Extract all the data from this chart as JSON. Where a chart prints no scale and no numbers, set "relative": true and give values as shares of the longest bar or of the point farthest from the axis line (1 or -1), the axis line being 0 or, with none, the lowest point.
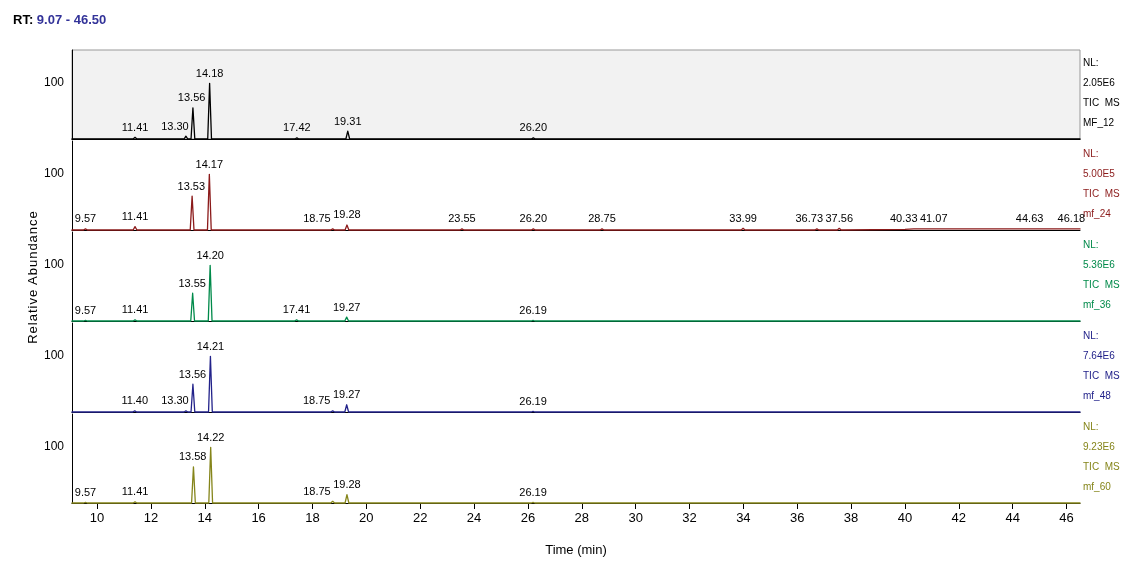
{
  "chart_data": [
    {
      "type": "line",
      "title": "RT: 9.07 - 46.50",
      "relative": true,
      "x": [
        9.07,
        11.34,
        11.41,
        11.48,
        13.23,
        13.3,
        13.37,
        13.49,
        13.56,
        13.63,
        14.11,
        14.18,
        14.25,
        17.35,
        17.42,
        17.49,
        19.24,
        19.31,
        19.38,
        26.13,
        26.2,
        26.27,
        46.5
      ],
      "series": [
        {
          "color": "#000000",
          "values": [
            0,
            0,
            0.03,
            0,
            0,
            0.05,
            0,
            0,
            0.56,
            0,
            0,
            1,
            0,
            0,
            0.02,
            0,
            0,
            0.14,
            0,
            0,
            0.02,
            0,
            0
          ]
        }
      ],
      "xlim": [
        9.07,
        46.5
      ],
      "xticks": [
        10,
        12,
        14,
        16,
        18,
        20,
        22,
        24,
        26,
        28,
        30,
        32,
        34,
        36,
        38,
        40,
        42,
        44,
        46
      ],
      "tick_labels": false,
      "grid": false,
      "annotations": [
        "100",
        {
          "text": "11.41",
          "x": 11.41,
          "y": 0.03
        },
        {
          "text": "13.30",
          "x": 13.3,
          "y": 0.05
        },
        {
          "text": "13.56",
          "x": 13.56,
          "y": 0.56
        },
        {
          "text": "14.18",
          "x": 14.18,
          "y": 1
        },
        {
          "text": "17.42",
          "x": 17.42,
          "y": 0.02
        },
        {
          "text": "19.31",
          "x": 19.31,
          "y": 0.14
        },
        {
          "text": "26.20",
          "x": 26.2,
          "y": 0.02
        },
        "NL:\n2.05E6\nTIC  MS\nMF_12"
      ]
    },
    {
      "type": "line",
      "relative": true,
      "x": [
        9.07,
        9.5,
        9.57,
        9.64,
        11.34,
        11.41,
        11.48,
        13.46,
        13.53,
        13.6,
        14.1,
        14.17,
        14.24,
        18.68,
        18.75,
        18.82,
        19.21,
        19.28,
        19.35,
        23.48,
        23.55,
        23.62,
        26.13,
        26.2,
        26.27,
        28.68,
        28.75,
        28.82,
        33.92,
        33.99,
        34.06,
        36.66,
        36.73,
        36.8,
        37.49,
        37.56,
        37.63,
        40.0,
        40.33,
        41.07,
        44.63,
        46.18,
        46.5
      ],
      "series": [
        {
          "color": "#8b1a1a",
          "values": [
            0,
            0,
            0.02,
            0,
            0,
            0.06,
            0,
            0,
            0.61,
            0,
            0,
            1,
            0,
            0,
            0.02,
            0,
            0,
            0.09,
            0,
            0,
            0.02,
            0,
            0,
            0.02,
            0,
            0,
            0.02,
            0,
            0,
            0.03,
            0,
            0,
            0.02,
            0,
            0,
            0.03,
            0,
            0.01,
            0.02,
            0.02,
            0.02,
            0.02,
            0.02
          ]
        }
      ],
      "xlim": [
        9.07,
        46.5
      ],
      "xticks": [
        10,
        12,
        14,
        16,
        18,
        20,
        22,
        24,
        26,
        28,
        30,
        32,
        34,
        36,
        38,
        40,
        42,
        44,
        46
      ],
      "tick_labels": false,
      "grid": false,
      "annotations": [
        "100",
        {
          "text": "9.57",
          "x": 9.57,
          "y": 0.02
        },
        {
          "text": "11.41",
          "x": 11.41,
          "y": 0.06
        },
        {
          "text": "13.53",
          "x": 13.53,
          "y": 0.61
        },
        {
          "text": "14.17",
          "x": 14.17,
          "y": 1
        },
        {
          "text": "18.75",
          "x": 18.75,
          "y": 0.02
        },
        {
          "text": "19.28",
          "x": 19.28,
          "y": 0.09
        },
        {
          "text": "23.55",
          "x": 23.55,
          "y": 0.02
        },
        {
          "text": "26.20",
          "x": 26.2,
          "y": 0.02
        },
        {
          "text": "28.75",
          "x": 28.75,
          "y": 0.02
        },
        {
          "text": "33.99",
          "x": 33.99,
          "y": 0.03
        },
        {
          "text": "36.73",
          "x": 36.73,
          "y": 0.02
        },
        {
          "text": "37.56",
          "x": 37.56,
          "y": 0.03
        },
        {
          "text": "40.33",
          "x": 40.33,
          "y": 0.02
        },
        {
          "text": "41.07",
          "x": 41.07,
          "y": 0.02
        },
        {
          "text": "44.63",
          "x": 44.63,
          "y": 0.02
        },
        {
          "text": "46.18",
          "x": 46.18,
          "y": 0.02
        },
        "NL:\n5.00E5\nTIC  MS\nmf_24"
      ]
    },
    {
      "type": "line",
      "relative": true,
      "ylabel": "Relative Abundance",
      "x": [
        9.07,
        9.5,
        9.57,
        9.64,
        11.34,
        11.41,
        11.48,
        13.48,
        13.55,
        13.62,
        14.13,
        14.2,
        14.27,
        17.34,
        17.41,
        17.48,
        19.2,
        19.27,
        19.34,
        26.12,
        26.19,
        26.26,
        46.5
      ],
      "series": [
        {
          "color": "#008a4a",
          "values": [
            0,
            0,
            0.01,
            0,
            0,
            0.02,
            0,
            0,
            0.5,
            0,
            0,
            1,
            0,
            0,
            0.02,
            0,
            0,
            0.07,
            0,
            0,
            0.01,
            0,
            0
          ]
        }
      ],
      "xlim": [
        9.07,
        46.5
      ],
      "xticks": [
        10,
        12,
        14,
        16,
        18,
        20,
        22,
        24,
        26,
        28,
        30,
        32,
        34,
        36,
        38,
        40,
        42,
        44,
        46
      ],
      "tick_labels": false,
      "grid": false,
      "annotations": [
        "100",
        {
          "text": "9.57",
          "x": 9.57,
          "y": 0.01
        },
        {
          "text": "11.41",
          "x": 11.41,
          "y": 0.02
        },
        {
          "text": "13.55",
          "x": 13.55,
          "y": 0.5
        },
        {
          "text": "14.20",
          "x": 14.2,
          "y": 1
        },
        {
          "text": "17.41",
          "x": 17.41,
          "y": 0.02
        },
        {
          "text": "19.27",
          "x": 19.27,
          "y": 0.07
        },
        {
          "text": "26.19",
          "x": 26.19,
          "y": 0.01
        },
        "NL:\n5.36E6\nTIC  MS\nmf_36"
      ]
    },
    {
      "type": "line",
      "relative": true,
      "x": [
        9.07,
        11.33,
        11.4,
        11.47,
        13.23,
        13.3,
        13.37,
        13.49,
        13.56,
        13.63,
        14.14,
        14.21,
        14.28,
        18.68,
        18.75,
        18.82,
        19.2,
        19.27,
        19.34,
        26.12,
        26.19,
        26.26,
        46.5
      ],
      "series": [
        {
          "color": "#22228a",
          "values": [
            0,
            0,
            0.02,
            0,
            0,
            0.02,
            0,
            0,
            0.5,
            0,
            0,
            1,
            0,
            0,
            0.02,
            0,
            0,
            0.13,
            0,
            0,
            0.01,
            0,
            0
          ]
        }
      ],
      "xlim": [
        9.07,
        46.5
      ],
      "xticks": [
        10,
        12,
        14,
        16,
        18,
        20,
        22,
        24,
        26,
        28,
        30,
        32,
        34,
        36,
        38,
        40,
        42,
        44,
        46
      ],
      "tick_labels": false,
      "grid": false,
      "annotations": [
        "100",
        {
          "text": "11.40",
          "x": 11.4,
          "y": 0.02
        },
        {
          "text": "13.30",
          "x": 13.3,
          "y": 0.02
        },
        {
          "text": "13.56",
          "x": 13.56,
          "y": 0.5
        },
        {
          "text": "14.21",
          "x": 14.21,
          "y": 1
        },
        {
          "text": "18.75",
          "x": 18.75,
          "y": 0.02
        },
        {
          "text": "19.27",
          "x": 19.27,
          "y": 0.13
        },
        {
          "text": "26.19",
          "x": 26.19,
          "y": 0.01
        },
        "NL:\n7.64E6\nTIC  MS\nmf_48"
      ]
    },
    {
      "type": "line",
      "relative": true,
      "xlabel": "Time (min)",
      "x": [
        9.07,
        9.5,
        9.57,
        9.64,
        11.34,
        11.41,
        11.48,
        13.51,
        13.58,
        13.65,
        14.15,
        14.22,
        14.29,
        18.68,
        18.75,
        18.82,
        19.21,
        19.28,
        19.35,
        26.12,
        26.19,
        26.26,
        46.5
      ],
      "series": [
        {
          "color": "#85851a",
          "values": [
            0,
            0,
            0.01,
            0,
            0,
            0.02,
            0,
            0,
            0.65,
            0,
            0,
            1,
            0,
            0,
            0.03,
            0,
            0,
            0.15,
            0,
            0,
            0.01,
            0,
            0
          ]
        }
      ],
      "xlim": [
        9.07,
        46.5
      ],
      "xticks": [
        10,
        12,
        14,
        16,
        18,
        20,
        22,
        24,
        26,
        28,
        30,
        32,
        34,
        36,
        38,
        40,
        42,
        44,
        46
      ],
      "tick_labels": "x",
      "grid": false,
      "annotations": [
        "100",
        {
          "text": "9.57",
          "x": 9.57,
          "y": 0.01
        },
        {
          "text": "11.41",
          "x": 11.41,
          "y": 0.02
        },
        {
          "text": "13.58",
          "x": 13.58,
          "y": 0.65
        },
        {
          "text": "14.22",
          "x": 14.22,
          "y": 1
        },
        {
          "text": "18.75",
          "x": 18.75,
          "y": 0.03
        },
        {
          "text": "19.28",
          "x": 19.28,
          "y": 0.15
        },
        {
          "text": "26.19",
          "x": 26.19,
          "y": 0.01
        },
        "NL:\n9.23E6\nTIC  MS\nmf_60"
      ]
    }
  ]
}
